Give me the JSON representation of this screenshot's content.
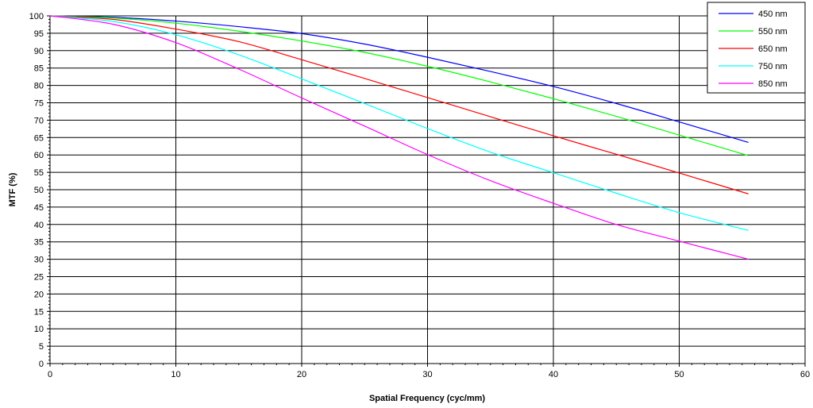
{
  "chart_data": {
    "type": "line",
    "xlabel": "Spatial Frequency (cyc/mm)",
    "ylabel": "MTF (%)",
    "xlim": [
      0,
      60
    ],
    "ylim": [
      0,
      100
    ],
    "x_ticks": [
      "0",
      "10",
      "20",
      "30",
      "40",
      "50",
      "60"
    ],
    "y_ticks": [
      "0",
      "5",
      "10",
      "15",
      "20",
      "25",
      "30",
      "35",
      "40",
      "45",
      "50",
      "55",
      "60",
      "65",
      "70",
      "75",
      "80",
      "85",
      "90",
      "95",
      "100"
    ],
    "grid": true,
    "legend_position": "top-right",
    "x": [
      0,
      5,
      10,
      15,
      20,
      25,
      30,
      35,
      40,
      45,
      50,
      55.5
    ],
    "series": [
      {
        "name": "450 nm",
        "color": "#0000ff",
        "values": [
          100,
          99.6,
          98.5,
          96.9,
          94.9,
          91.9,
          88.1,
          84.0,
          79.7,
          74.8,
          69.5,
          63.6
        ]
      },
      {
        "name": "550 nm",
        "color": "#00ff00",
        "values": [
          100,
          99.4,
          97.9,
          95.6,
          92.8,
          89.5,
          85.5,
          81.0,
          76.2,
          71.1,
          65.7,
          59.8
        ]
      },
      {
        "name": "650 nm",
        "color": "#ff0000",
        "values": [
          100,
          99.0,
          96.2,
          92.6,
          87.4,
          82.0,
          76.5,
          71.0,
          65.5,
          60.2,
          54.8,
          48.8
        ]
      },
      {
        "name": "750 nm",
        "color": "#00ffff",
        "values": [
          100,
          98.4,
          94.6,
          88.8,
          81.9,
          74.8,
          67.6,
          60.8,
          54.9,
          49.0,
          43.4,
          38.3
        ]
      },
      {
        "name": "850 nm",
        "color": "#ff00ff",
        "values": [
          100,
          97.6,
          92.3,
          84.7,
          76.4,
          68.3,
          60.1,
          52.6,
          46.1,
          40.0,
          35.2,
          30.0
        ]
      }
    ]
  }
}
